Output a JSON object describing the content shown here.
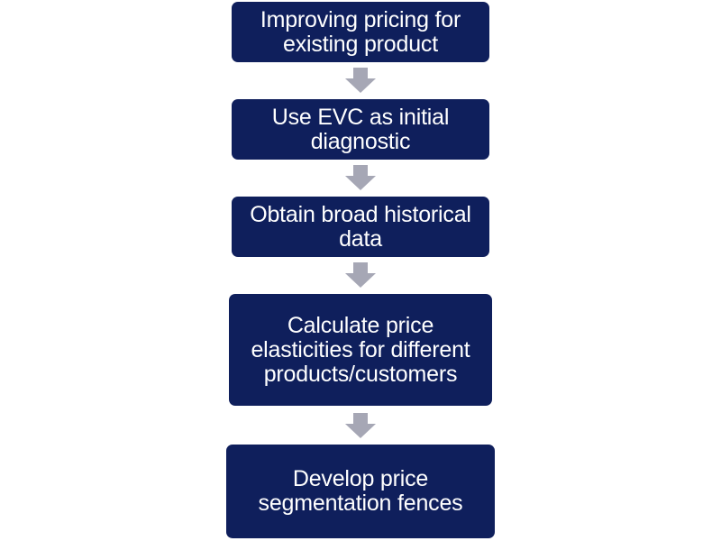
{
  "steps": [
    {
      "lines": [
        "Improving pricing for",
        "existing product"
      ]
    },
    {
      "lines": [
        "Use EVC as initial",
        "diagnostic"
      ]
    },
    {
      "lines": [
        "Obtain broad historical",
        "data"
      ]
    },
    {
      "lines": [
        "Calculate price",
        "elasticities for different",
        "products/customers"
      ]
    },
    {
      "lines": [
        "Develop price",
        "segmentation fences"
      ]
    }
  ],
  "colors": {
    "box_fill": "#0f1f5c",
    "box_text": "#ffffff",
    "arrow_fill": "#a6a7b5"
  },
  "icons": {
    "connector": "down-arrow-icon"
  }
}
